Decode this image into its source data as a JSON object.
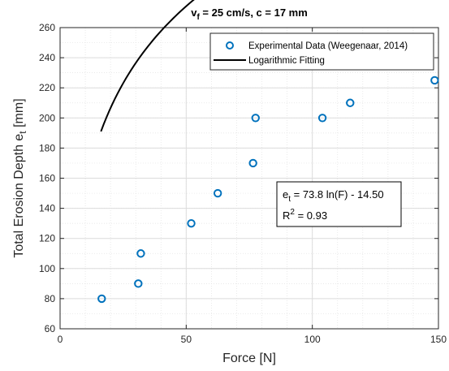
{
  "chart_data": {
    "type": "scatter",
    "title": {
      "main": "v",
      "sub": "f",
      "rest": " = 25 cm/s, c = 17 mm"
    },
    "xlabel": "Force [N]",
    "ylabel": {
      "main": "Total Erosion Depth e",
      "sub": "t",
      "rest": " [mm]"
    },
    "xlim": [
      0,
      150
    ],
    "ylim": [
      60,
      260
    ],
    "xticks": [
      0,
      50,
      100,
      150
    ],
    "yticks": [
      60,
      80,
      100,
      120,
      140,
      160,
      180,
      200,
      220,
      240,
      260
    ],
    "grid": true,
    "minor_grid": true,
    "legend_position": "top-right",
    "series": [
      {
        "name": "Experimental Data (Weegenaar, 2014)",
        "kind": "markers",
        "color": "#0072BD",
        "x": [
          16.5,
          31.0,
          32.0,
          52.0,
          62.5,
          76.5,
          77.5,
          104.0,
          115.0,
          148.5
        ],
        "y": [
          80,
          90,
          110,
          130,
          150,
          170,
          200,
          200,
          210,
          225
        ]
      },
      {
        "name": "Logarithmic Fitting",
        "kind": "line",
        "color": "#000000",
        "a": 73.8,
        "b": -14.5,
        "x_range": [
          16.2,
          148.5
        ]
      }
    ],
    "annotation": {
      "line1": {
        "main": "e",
        "sub": "t",
        "rest": " = 73.8 ln(F) - 14.50"
      },
      "line2": {
        "main": "R",
        "sup": "2",
        "rest": " = 0.93"
      }
    }
  }
}
